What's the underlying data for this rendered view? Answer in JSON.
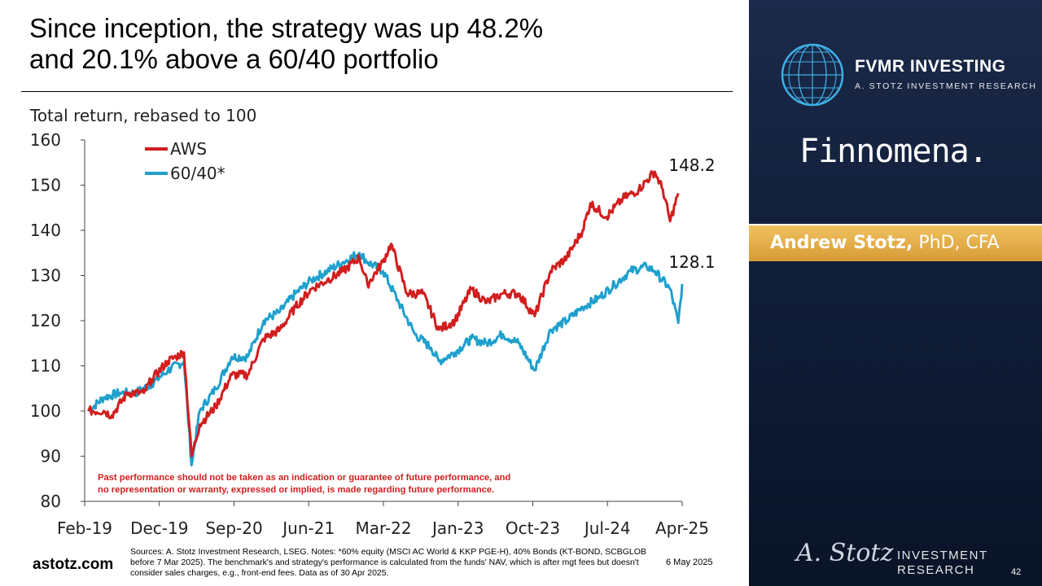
{
  "title": {
    "line1": "Since inception, the strategy was up 48.2%",
    "line2": "and 20.1% above a 60/40 portfolio"
  },
  "chart_data": {
    "type": "line",
    "ylabel": "Total return, rebased to 100",
    "ylim": [
      80,
      160
    ],
    "yticks": [
      80,
      90,
      100,
      110,
      120,
      130,
      140,
      150,
      160
    ],
    "xticks": [
      "Feb-19",
      "Dec-19",
      "Sep-20",
      "Jun-21",
      "Mar-22",
      "Jan-23",
      "Oct-23",
      "Jul-24",
      "Apr-25"
    ],
    "legend_position": "top-left",
    "grid": false,
    "series": [
      {
        "name": "AWS",
        "color": "#d11e1e",
        "end_label": "148.2",
        "points": [
          [
            "2019-02",
            100
          ],
          [
            "2019-04",
            100
          ],
          [
            "2019-05",
            99
          ],
          [
            "2019-07",
            104
          ],
          [
            "2019-09",
            104
          ],
          [
            "2019-10",
            107
          ],
          [
            "2019-12",
            111
          ],
          [
            "2020-01",
            112
          ],
          [
            "2020-02",
            113
          ],
          [
            "2020-03",
            90
          ],
          [
            "2020-04",
            97
          ],
          [
            "2020-06",
            101
          ],
          [
            "2020-08",
            108
          ],
          [
            "2020-10",
            108
          ],
          [
            "2020-12",
            116
          ],
          [
            "2021-02",
            118
          ],
          [
            "2021-04",
            123
          ],
          [
            "2021-06",
            127
          ],
          [
            "2021-08",
            129
          ],
          [
            "2021-10",
            131
          ],
          [
            "2021-12",
            134
          ],
          [
            "2022-01",
            128
          ],
          [
            "2022-03",
            133
          ],
          [
            "2022-04",
            137
          ],
          [
            "2022-06",
            126
          ],
          [
            "2022-08",
            126
          ],
          [
            "2022-10",
            118
          ],
          [
            "2022-12",
            120
          ],
          [
            "2023-02",
            127
          ],
          [
            "2023-04",
            124
          ],
          [
            "2023-06",
            126
          ],
          [
            "2023-08",
            126
          ],
          [
            "2023-10",
            121
          ],
          [
            "2023-12",
            131
          ],
          [
            "2024-02",
            134
          ],
          [
            "2024-04",
            140
          ],
          [
            "2024-05",
            146
          ],
          [
            "2024-07",
            143
          ],
          [
            "2024-09",
            147
          ],
          [
            "2024-11",
            149
          ],
          [
            "2025-01",
            153
          ],
          [
            "2025-02",
            149
          ],
          [
            "2025-03",
            142
          ],
          [
            "2025-04",
            148.2
          ]
        ]
      },
      {
        "name": "60/40*",
        "color": "#1fa0cc",
        "end_label": "128.1",
        "points": [
          [
            "2019-02",
            100
          ],
          [
            "2019-04",
            103
          ],
          [
            "2019-06",
            104
          ],
          [
            "2019-08",
            104
          ],
          [
            "2019-10",
            106
          ],
          [
            "2019-12",
            109
          ],
          [
            "2020-02",
            111
          ],
          [
            "2020-03",
            88
          ],
          [
            "2020-04",
            100
          ],
          [
            "2020-06",
            105
          ],
          [
            "2020-08",
            112
          ],
          [
            "2020-10",
            112
          ],
          [
            "2020-12",
            120
          ],
          [
            "2021-02",
            122
          ],
          [
            "2021-04",
            126
          ],
          [
            "2021-06",
            129
          ],
          [
            "2021-08",
            131
          ],
          [
            "2021-10",
            133
          ],
          [
            "2021-12",
            135
          ],
          [
            "2022-01",
            133
          ],
          [
            "2022-03",
            131
          ],
          [
            "2022-05",
            124
          ],
          [
            "2022-07",
            117
          ],
          [
            "2022-09",
            114
          ],
          [
            "2022-10",
            111
          ],
          [
            "2022-12",
            113
          ],
          [
            "2023-02",
            116
          ],
          [
            "2023-04",
            115
          ],
          [
            "2023-06",
            117
          ],
          [
            "2023-08",
            115
          ],
          [
            "2023-10",
            109
          ],
          [
            "2023-12",
            118
          ],
          [
            "2024-02",
            120
          ],
          [
            "2024-04",
            123
          ],
          [
            "2024-06",
            125
          ],
          [
            "2024-08",
            128
          ],
          [
            "2024-10",
            131
          ],
          [
            "2024-12",
            132
          ],
          [
            "2025-01",
            131
          ],
          [
            "2025-03",
            127
          ],
          [
            "2025-04",
            119.5
          ],
          [
            "2025-04-30",
            128.1
          ]
        ]
      }
    ]
  },
  "disclaimer": {
    "line1": "Past performance should not be taken as an indication or guarantee of future performance, and",
    "line2": "no representation or warranty, expressed or implied, is made regarding future performance."
  },
  "footer": {
    "website": "astotz.com",
    "sources": "Sources: A. Stotz Investment Research, LSEG. Notes: *60% equity (MSCI AC World & KKP PGE-H), 40% Bonds (KT-BOND, SCBGLOB before 7 Mar 2025). The benchmark's and strategy's performance is calculated from the funds' NAV, which is after mgt fees but doesn't consider sales charges, e.g., front-end fees. Data as of 30 Apr 2025.",
    "date": "6 May 2025",
    "page_number": "42"
  },
  "sidebar": {
    "brand_name": "FVMR INVESTING",
    "brand_sub": "A. STOTZ INVESTMENT RESEARCH",
    "finnomena": "Finnomena.",
    "author_name": "Andrew Stotz,",
    "author_title": " PhD, CFA",
    "signature": "A. Stotz",
    "ir_line1": "INVESTMENT",
    "ir_line2": "RESEARCH"
  }
}
